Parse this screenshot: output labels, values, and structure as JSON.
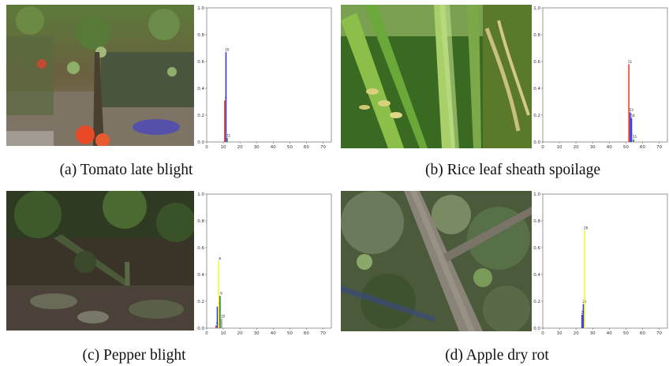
{
  "panels": [
    {
      "caption": "(a) Tomato late blight",
      "photo_icon": "tomato-plant-photo",
      "chart_data": {
        "type": "bar",
        "xlim": [
          0,
          75
        ],
        "ylim": [
          0,
          1
        ],
        "xticks": [
          0,
          10,
          20,
          30,
          40,
          50,
          60,
          70
        ],
        "yticks": [
          0.0,
          0.2,
          0.4,
          0.6,
          0.8,
          1.0
        ],
        "bars": [
          {
            "x": 10.8,
            "value": 0.31,
            "color": "#e8443a",
            "label": "9"
          },
          {
            "x": 11.6,
            "value": 0.67,
            "color": "#3b3bd4",
            "label": "10"
          },
          {
            "x": 12.4,
            "value": 0.03,
            "color": "#4d8a4d",
            "label": "11"
          }
        ]
      }
    },
    {
      "caption": "(b) Rice leaf sheath spoilage",
      "photo_icon": "rice-plant-photo",
      "chart_data": {
        "type": "bar",
        "xlim": [
          0,
          75
        ],
        "ylim": [
          0,
          1
        ],
        "xticks": [
          0,
          10,
          20,
          30,
          40,
          50,
          60,
          70
        ],
        "yticks": [
          0.0,
          0.2,
          0.4,
          0.6,
          0.8,
          1.0
        ],
        "bars": [
          {
            "x": 51.8,
            "value": 0.58,
            "color": "#e8443a",
            "label": "51"
          },
          {
            "x": 52.6,
            "value": 0.22,
            "color": "#3b3bd4",
            "label": "53"
          },
          {
            "x": 53.4,
            "value": 0.18,
            "color": "#3b3bd4",
            "label": "54"
          },
          {
            "x": 54.6,
            "value": 0.02,
            "color": "#2a7a2a",
            "label": "55"
          }
        ]
      }
    },
    {
      "caption": "(c) Pepper blight",
      "photo_icon": "pepper-plant-photo",
      "chart_data": {
        "type": "bar",
        "xlim": [
          0,
          75
        ],
        "ylim": [
          0,
          1
        ],
        "xticks": [
          0,
          10,
          20,
          30,
          40,
          50,
          60,
          70
        ],
        "yticks": [
          0.0,
          0.2,
          0.4,
          0.6,
          0.8,
          1.0
        ],
        "bars": [
          {
            "x": 5.6,
            "value": 0.02,
            "color": "#e8443a",
            "label": "6"
          },
          {
            "x": 6.4,
            "value": 0.16,
            "color": "#3b3bd4",
            "label": "7"
          },
          {
            "x": 7.2,
            "value": 0.5,
            "color": "#f5f542",
            "label": "8"
          },
          {
            "x": 8.0,
            "value": 0.24,
            "color": "#2a7a2a",
            "label": "9"
          },
          {
            "x": 9.0,
            "value": 0.07,
            "color": "#9a9a9a",
            "label": "10"
          }
        ]
      }
    },
    {
      "caption": "(d) Apple dry rot",
      "photo_icon": "apple-branch-photo",
      "chart_data": {
        "type": "bar",
        "xlim": [
          0,
          75
        ],
        "ylim": [
          0,
          1
        ],
        "xticks": [
          0,
          10,
          20,
          30,
          40,
          50,
          60,
          70
        ],
        "yticks": [
          0.0,
          0.2,
          0.4,
          0.6,
          0.8,
          1.0
        ],
        "bars": [
          {
            "x": 23.6,
            "value": 0.1,
            "color": "#3b3bd4",
            "label": "24"
          },
          {
            "x": 24.4,
            "value": 0.18,
            "color": "#3b3bd4",
            "label": "25"
          },
          {
            "x": 25.2,
            "value": 0.73,
            "color": "#f5f542",
            "label": "26"
          }
        ]
      }
    }
  ]
}
